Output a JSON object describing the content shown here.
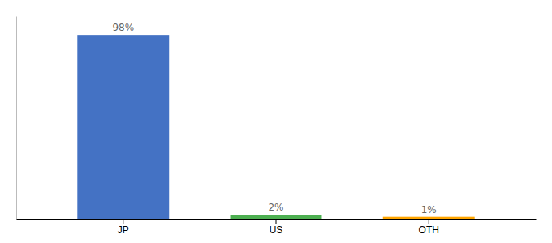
{
  "chart_data": {
    "type": "bar",
    "categories": [
      "JP",
      "US",
      "OTH"
    ],
    "values": [
      98,
      2,
      1
    ],
    "value_labels": [
      "98%",
      "2%",
      "1%"
    ],
    "data_labels": true,
    "colors": [
      "#4472C4",
      "#4CAF50",
      "#FFA500"
    ],
    "ylim": [
      0,
      108
    ],
    "tick_labels": "x"
  }
}
